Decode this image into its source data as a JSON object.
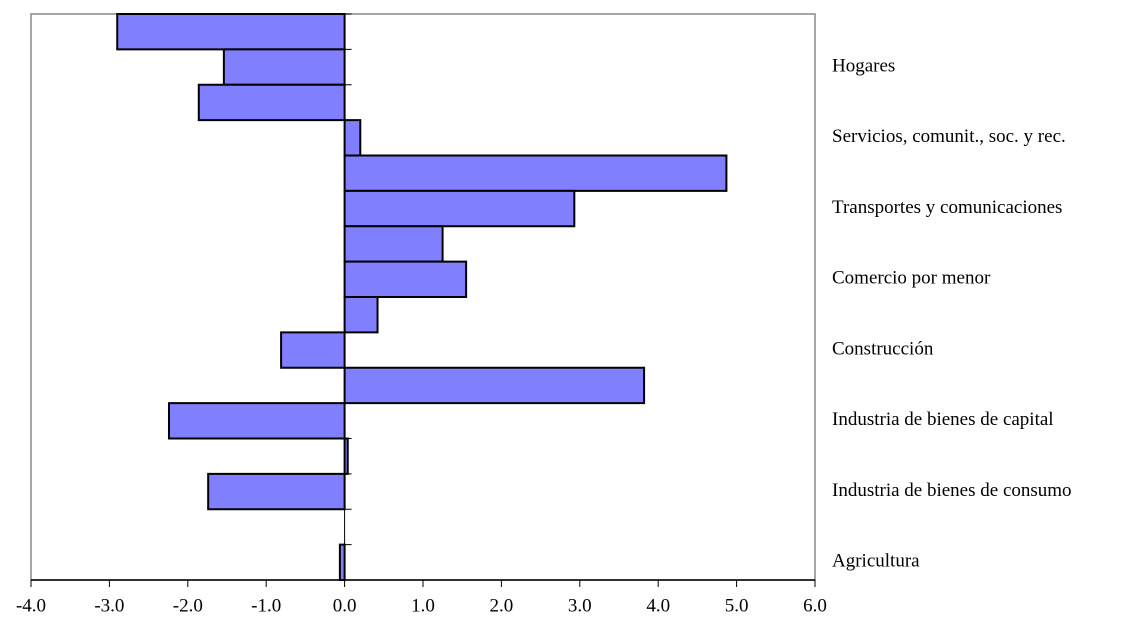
{
  "chart_data": {
    "type": "barh",
    "categories": [
      null,
      "Hogares",
      null,
      "Servicios, comunit., soc. y rec.",
      null,
      "Transportes y comunicaciones",
      null,
      "Comercio por menor",
      null,
      "Construcción",
      null,
      "Industria de bienes de capital",
      null,
      "Industria de bienes de consumo",
      null,
      "Agricultura"
    ],
    "values": [
      -2.9,
      -1.54,
      -1.86,
      0.2,
      4.87,
      2.93,
      1.25,
      1.55,
      0.42,
      -0.81,
      3.82,
      -2.24,
      0.04,
      -1.74,
      0,
      -0.06
    ],
    "color": "#8080ff",
    "xlim": [
      -4,
      6
    ],
    "xticks": [
      {
        "value": -4,
        "label": "-4.0"
      },
      {
        "value": -3,
        "label": "-3.0"
      },
      {
        "value": -2,
        "label": "-2.0"
      },
      {
        "value": -1,
        "label": "-1.0"
      },
      {
        "value": 0,
        "label": "0.0"
      },
      {
        "value": 1,
        "label": "1.0"
      },
      {
        "value": 2,
        "label": "2.0"
      },
      {
        "value": 3,
        "label": "3.0"
      },
      {
        "value": 4,
        "label": "4.0"
      },
      {
        "value": 5,
        "label": "5.0"
      },
      {
        "value": 6,
        "label": "6.0"
      }
    ],
    "grid": false
  }
}
